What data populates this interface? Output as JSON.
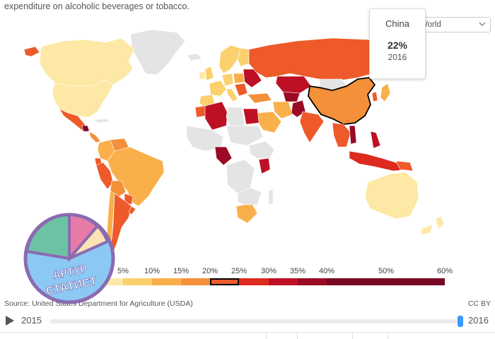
{
  "header": {
    "subtitle": "expenditure on alcoholic beverages or tobacco."
  },
  "tooltip": {
    "country": "China",
    "value": "22%",
    "year": "2016"
  },
  "region_select": {
    "value": "World",
    "icon": "chevron-down-icon"
  },
  "legend": {
    "ticks": [
      "5%",
      "10%",
      "15%",
      "20%",
      "25%",
      "30%",
      "35%",
      "40%",
      "50%",
      "60%"
    ],
    "bins": [
      {
        "color": "#fde9a5"
      },
      {
        "color": "#fcd06d"
      },
      {
        "color": "#f9b04a"
      },
      {
        "color": "#f4903a"
      },
      {
        "color": "#ee5a2a"
      },
      {
        "color": "#dd2a1e"
      },
      {
        "color": "#bd1024"
      },
      {
        "color": "#9a0a25"
      },
      {
        "color": "#780724"
      }
    ],
    "highlighted_bin": 3
  },
  "footer": {
    "source": "Source: United States Department for Agriculture (USDA)",
    "license": "CC BY"
  },
  "timeline": {
    "start_year": "2015",
    "end_year": "2016",
    "selected_year": 2016,
    "play_icon": "play-icon"
  },
  "map_colors": {
    "no_data": "#e4e4e4",
    "border": "#ffffff",
    "selected_border": "#000000"
  },
  "watermark": {
    "line1": "АРТУР",
    "line2": "СТАТИСТ"
  }
}
